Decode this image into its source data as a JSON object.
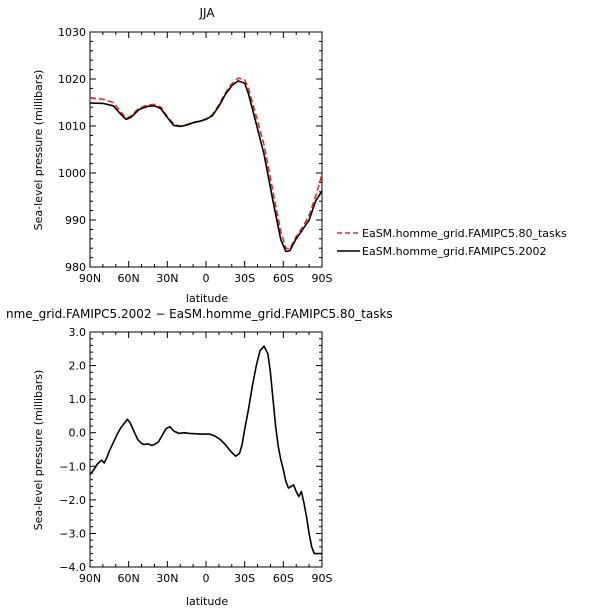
{
  "chart_data": [
    {
      "type": "line",
      "title": "JJA",
      "xlabel": "latitude",
      "ylabel": "Sea-level pressure (millibars)",
      "xlim": [
        90,
        -90
      ],
      "ylim": [
        980,
        1030
      ],
      "xtick_values": [
        90,
        60,
        30,
        0,
        -30,
        -60,
        -90
      ],
      "xtick_labels": [
        "90N",
        "60N",
        "30N",
        "0",
        "30S",
        "60S",
        "90S"
      ],
      "yticks": [
        980,
        990,
        1000,
        1010,
        1020,
        1030
      ],
      "ytick_labels": [
        "980",
        "990",
        "1000",
        "1010",
        "1020",
        "1030"
      ],
      "legend_placement": "outside-right",
      "series": [
        {
          "name": "EaSM.homme_grid.FAMIPC5.80_tasks",
          "color": "#e8291c",
          "dash": "dashed",
          "x": [
            90,
            80,
            72,
            66,
            62,
            58,
            52,
            45,
            40,
            35,
            30,
            25,
            20,
            15,
            10,
            5,
            0,
            -5,
            -10,
            -15,
            -20,
            -25,
            -30,
            -33,
            -38,
            -45,
            -52,
            -58,
            -62,
            -65,
            -70,
            -75,
            -80,
            -85,
            -90
          ],
          "y": [
            1016,
            1015.7,
            1015,
            1013,
            1011.6,
            1012.2,
            1013.8,
            1014.5,
            1014.6,
            1014,
            1012,
            1010.4,
            1010,
            1010.3,
            1010.8,
            1011,
            1011.5,
            1012.4,
            1014.5,
            1017,
            1019,
            1020.2,
            1019.8,
            1018,
            1013,
            1006,
            996,
            987.5,
            984,
            983.8,
            986.5,
            988.5,
            991,
            995,
            999.7
          ]
        },
        {
          "name": "EaSM.homme_grid.FAMIPC5.2002",
          "color": "#000000",
          "dash": "solid",
          "x": [
            90,
            80,
            72,
            66,
            62,
            58,
            52,
            45,
            40,
            35,
            30,
            25,
            20,
            15,
            10,
            5,
            0,
            -5,
            -10,
            -15,
            -20,
            -25,
            -30,
            -33,
            -38,
            -45,
            -52,
            -58,
            -62,
            -65,
            -70,
            -75,
            -80,
            -85,
            -90
          ],
          "y": [
            1014.9,
            1014.8,
            1014.3,
            1012.5,
            1011.4,
            1011.9,
            1013.5,
            1014.2,
            1014.3,
            1013.7,
            1011.8,
            1010.1,
            1009.9,
            1010.2,
            1010.7,
            1011,
            1011.4,
            1012.2,
            1014.2,
            1016.7,
            1018.6,
            1019.6,
            1019.1,
            1016.8,
            1011.5,
            1004,
            994,
            985.8,
            983.3,
            983.5,
            986,
            988,
            990,
            994,
            996.2
          ]
        }
      ]
    },
    {
      "type": "line",
      "title": "nme_grid.FAMIPC5.2002 − EaSM.homme_grid.FAMIPC5.80_tasks",
      "xlabel": "latitude",
      "ylabel": "Sea-level pressure (millibars)",
      "xlim": [
        90,
        -90
      ],
      "ylim": [
        -4.0,
        3.0
      ],
      "xtick_values": [
        90,
        60,
        30,
        0,
        -30,
        -60,
        -90
      ],
      "xtick_labels": [
        "90N",
        "60N",
        "30N",
        "0",
        "30S",
        "60S",
        "90S"
      ],
      "yticks": [
        -4,
        -3,
        -2,
        -1,
        0,
        1,
        2,
        3
      ],
      "ytick_labels": [
        "−4.0",
        "−3.0",
        "−2.0",
        "−1.0",
        "0.0",
        "1.0",
        "2.0",
        "3.0"
      ],
      "series": [
        {
          "color": "#000000",
          "dash": "solid",
          "x": [
            90,
            87,
            84,
            81,
            79,
            77,
            75,
            72,
            69,
            66,
            63,
            61,
            59,
            56,
            53,
            50,
            48,
            45,
            42,
            40,
            37,
            34,
            31,
            28,
            25,
            21,
            17,
            13,
            9,
            5,
            1,
            -3,
            -7,
            -11,
            -15,
            -19,
            -23,
            -26,
            -28,
            -30,
            -33,
            -36,
            -39,
            -42,
            -45,
            -48,
            -50,
            -52,
            -54,
            -56,
            -58,
            -60,
            -62,
            -64,
            -66,
            -68,
            -70,
            -72,
            -74,
            -76,
            -78,
            -80,
            -82,
            -84,
            -86,
            -88,
            -90
          ],
          "y": [
            -1.25,
            -1.1,
            -0.92,
            -0.82,
            -0.9,
            -0.75,
            -0.55,
            -0.3,
            -0.05,
            0.15,
            0.3,
            0.4,
            0.3,
            0.05,
            -0.2,
            -0.32,
            -0.35,
            -0.33,
            -0.38,
            -0.35,
            -0.28,
            -0.08,
            0.12,
            0.18,
            0.05,
            -0.02,
            0.0,
            -0.02,
            -0.03,
            -0.04,
            -0.04,
            -0.04,
            -0.1,
            -0.2,
            -0.35,
            -0.55,
            -0.7,
            -0.62,
            -0.35,
            0.1,
            0.7,
            1.4,
            2.0,
            2.45,
            2.58,
            2.35,
            1.8,
            1.0,
            0.2,
            -0.4,
            -0.8,
            -1.1,
            -1.45,
            -1.65,
            -1.6,
            -1.55,
            -1.75,
            -1.9,
            -1.75,
            -2.1,
            -2.5,
            -3.0,
            -3.4,
            -3.6,
            -3.6,
            -3.6,
            -3.6
          ]
        }
      ]
    }
  ]
}
